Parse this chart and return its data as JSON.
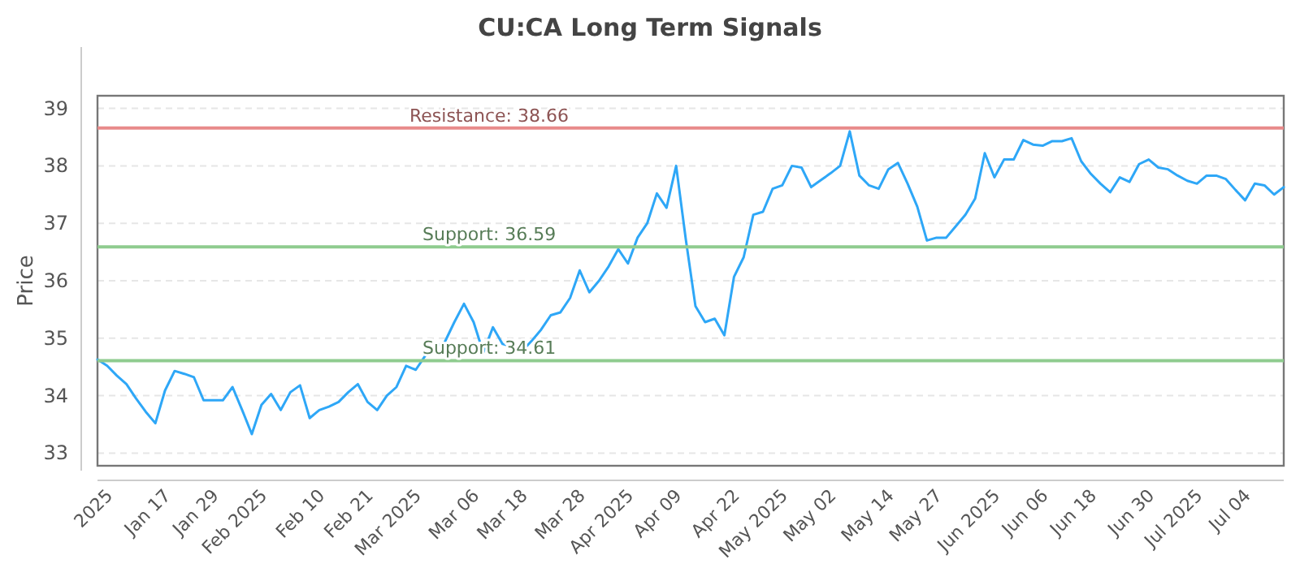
{
  "chart_data": {
    "type": "line",
    "title": "CU:CA Long Term Signals",
    "ylabel": "Price",
    "categories": [
      null,
      "2025",
      null,
      null,
      null,
      null,
      null,
      "Jan 17",
      null,
      null,
      null,
      null,
      "Jan 29",
      null,
      null,
      null,
      null,
      "Feb 2025",
      null,
      null,
      null,
      null,
      null,
      "Feb 10",
      null,
      null,
      null,
      null,
      "Feb 21",
      null,
      null,
      null,
      null,
      "Mar 2025",
      null,
      null,
      null,
      null,
      null,
      "Mar 06",
      null,
      null,
      null,
      null,
      "Mar 18",
      null,
      null,
      null,
      null,
      null,
      "Mar 28",
      null,
      null,
      null,
      null,
      "Apr 2025",
      null,
      null,
      null,
      null,
      "Apr 09",
      null,
      null,
      null,
      null,
      null,
      "Apr 22",
      null,
      null,
      null,
      null,
      "May 2025",
      null,
      null,
      null,
      null,
      "May 02",
      null,
      null,
      null,
      null,
      null,
      "May 14",
      null,
      null,
      null,
      null,
      "May 27",
      null,
      null,
      null,
      null,
      null,
      "Jun 2025",
      null,
      null,
      null,
      null,
      "Jun 06",
      null,
      null,
      null,
      null,
      "Jun 18",
      null,
      null,
      null,
      null,
      null,
      "Jun 30",
      null,
      null,
      null,
      null,
      "Jul 2025",
      null,
      null,
      null,
      null,
      "Jul 04",
      null,
      null,
      null,
      null
    ],
    "series": [
      {
        "color": "#2ea7f7",
        "values": [
          34.63,
          34.52,
          34.35,
          34.2,
          33.95,
          33.72,
          33.52,
          34.09,
          34.43,
          34.38,
          34.32,
          33.92,
          33.92,
          33.92,
          34.15,
          33.75,
          33.33,
          33.84,
          34.03,
          33.75,
          34.06,
          34.18,
          33.61,
          33.75,
          33.81,
          33.89,
          34.06,
          34.2,
          33.89,
          33.75,
          34.0,
          34.15,
          34.52,
          34.45,
          34.7,
          34.85,
          34.93,
          35.28,
          35.6,
          35.28,
          34.75,
          35.19,
          34.9,
          34.85,
          34.77,
          34.95,
          35.15,
          35.4,
          35.45,
          35.7,
          36.18,
          35.8,
          36.0,
          36.25,
          36.55,
          36.3,
          36.75,
          37.0,
          37.52,
          37.27,
          38.0,
          36.72,
          35.56,
          35.28,
          35.34,
          35.05,
          36.07,
          36.41,
          37.15,
          37.2,
          37.6,
          37.66,
          38.0,
          37.97,
          37.63,
          37.75,
          37.87,
          38.0,
          38.6,
          37.83,
          37.66,
          37.6,
          37.94,
          38.05,
          37.69,
          37.29,
          36.7,
          36.75,
          36.75,
          36.95,
          37.15,
          37.43,
          38.22,
          37.8,
          38.11,
          38.11,
          38.45,
          38.37,
          38.35,
          38.43,
          38.43,
          38.48,
          38.08,
          37.86,
          37.69,
          37.54,
          37.8,
          37.72,
          38.03,
          38.11,
          37.97,
          37.94,
          37.83,
          37.74,
          37.69,
          37.83,
          37.83,
          37.77,
          37.58,
          37.4,
          37.69,
          37.66,
          37.5,
          37.63
        ]
      }
    ],
    "ylim": [
      32.78,
      39.22
    ],
    "yticks": [
      33,
      34,
      35,
      36,
      37,
      38,
      39
    ],
    "grid": "y",
    "marker": "none",
    "line_style": "solid",
    "ref_lines": [
      {
        "axis": "y",
        "value": 38.66,
        "label": "Resistance: 38.66",
        "color": "#e88a8a"
      },
      {
        "axis": "y",
        "value": 36.59,
        "label": "Support: 36.59",
        "color": "#8fcc8f"
      },
      {
        "axis": "y",
        "value": 34.61,
        "label": "Support: 34.61",
        "color": "#8fcc8f"
      }
    ]
  }
}
